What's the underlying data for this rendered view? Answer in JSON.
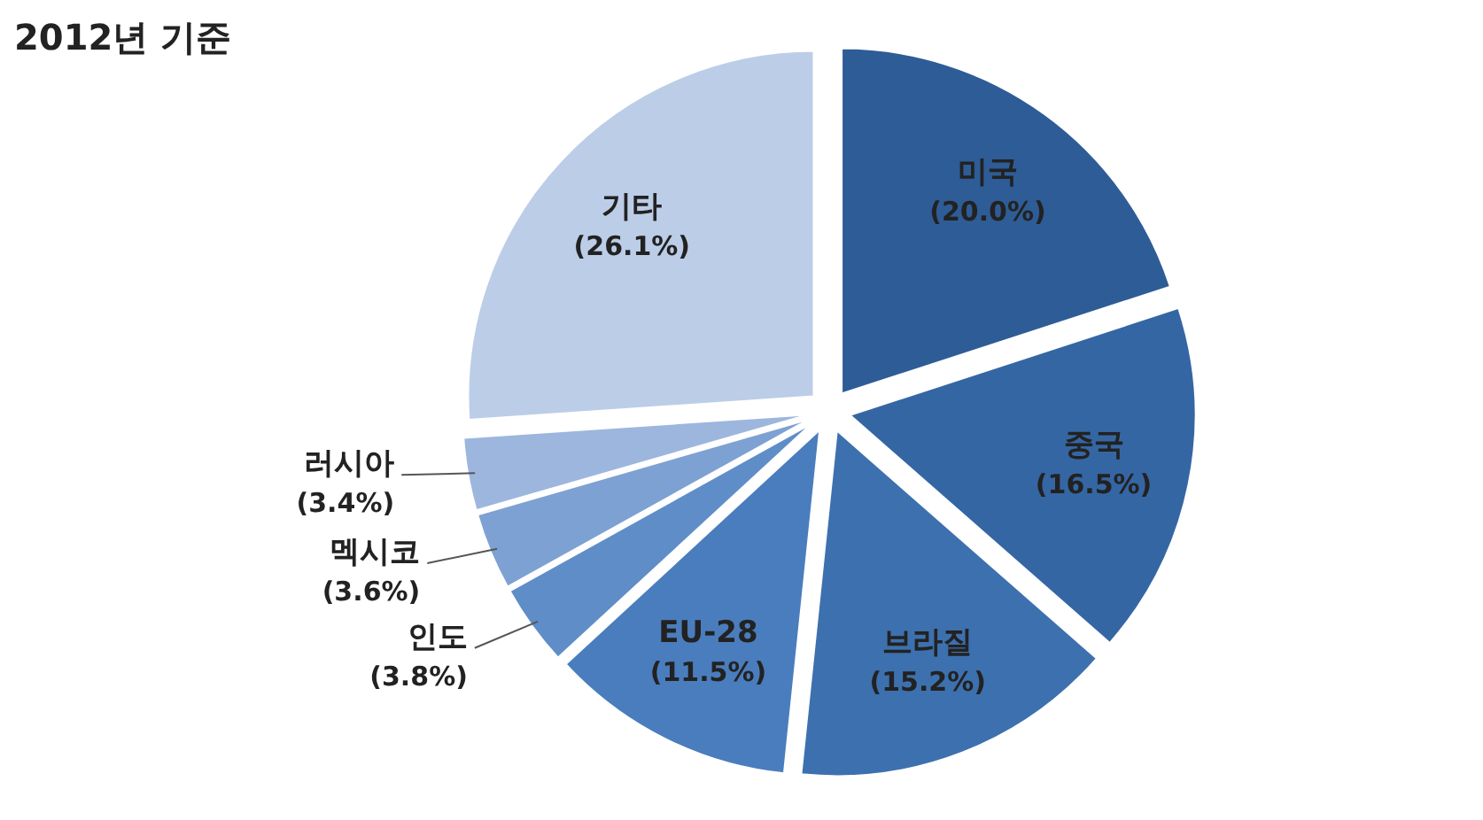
{
  "chart_data": {
    "type": "pie",
    "title": "2012년 기준",
    "categories": [
      "미국",
      "중국",
      "브라질",
      "EU-28",
      "인도",
      "멕시코",
      "러시아",
      "기타"
    ],
    "values": [
      20.0,
      16.5,
      15.2,
      11.5,
      3.8,
      3.6,
      3.4,
      26.1
    ],
    "value_labels": [
      "(20.0%)",
      "(16.5%)",
      "(15.2%)",
      "(11.5%)",
      "(3.8%)",
      "(3.6%)",
      "(3.4%)",
      "(26.1%)"
    ],
    "colors": [
      "#2e5c96",
      "#3566a4",
      "#3d70ae",
      "#4a7dbd",
      "#5f8dc8",
      "#7ea1d3",
      "#9db6de",
      "#bccde8"
    ]
  }
}
